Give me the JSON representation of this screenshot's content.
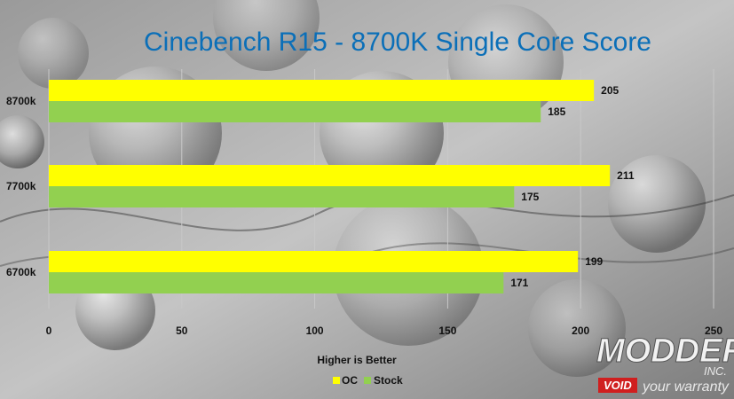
{
  "chart_data": {
    "type": "bar",
    "orientation": "horizontal",
    "title": "Cinebench R15 - 8700K Single Core Score",
    "xlabel": "Higher is Better",
    "ylabel": "",
    "categories": [
      "8700k",
      "7700k",
      "6700k"
    ],
    "series": [
      {
        "name": "OC",
        "color": "#ffff00",
        "values": [
          205,
          211,
          199
        ]
      },
      {
        "name": "Stock",
        "color": "#92d050",
        "values": [
          185,
          175,
          171
        ]
      }
    ],
    "xlim": [
      0,
      250
    ],
    "xticks": [
      "0",
      "50",
      "100",
      "150",
      "200",
      "250"
    ],
    "grid": true,
    "legend_position": "bottom",
    "data_labels": true
  },
  "colors": {
    "title": "#0b6fb8",
    "oc": "#ffff00",
    "stock": "#92d050",
    "gridline": "#c8c8c8"
  },
  "watermark": {
    "brand": "MODDERS",
    "suffix": "INC.",
    "tag": "VOID",
    "tagline": "your warranty"
  }
}
